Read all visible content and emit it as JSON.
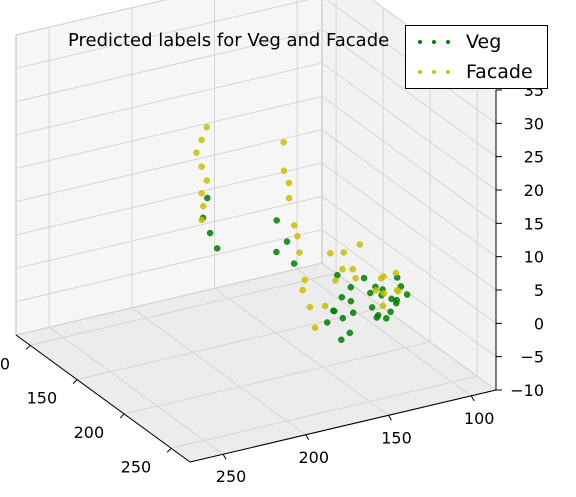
{
  "chart_data": {
    "type": "scatter",
    "projection": "3d",
    "title": "Predicted labels for Veg and Facade",
    "series": [
      {
        "name": "Veg",
        "color": "#008000",
        "points": [
          [
            228,
            210,
            18
          ],
          [
            226,
            214,
            16
          ],
          [
            224,
            218,
            14
          ],
          [
            222,
            204,
            20
          ],
          [
            195,
            230,
            13
          ],
          [
            192,
            236,
            15
          ],
          [
            190,
            240,
            12
          ],
          [
            196,
            232,
            18
          ],
          [
            170,
            240,
            2
          ],
          [
            168,
            244,
            4
          ],
          [
            166,
            248,
            0
          ],
          [
            164,
            236,
            3
          ],
          [
            160,
            238,
            5
          ],
          [
            158,
            244,
            7
          ],
          [
            162,
            250,
            1
          ],
          [
            165,
            242,
            9
          ],
          [
            156,
            232,
            1
          ],
          [
            152,
            236,
            2
          ],
          [
            150,
            230,
            3
          ],
          [
            140,
            235,
            2
          ],
          [
            138,
            238,
            1
          ],
          [
            136,
            226,
            3
          ],
          [
            142,
            230,
            6
          ],
          [
            140,
            240,
            1
          ],
          [
            132,
            236,
            0
          ],
          [
            134,
            228,
            4
          ],
          [
            128,
            224,
            2
          ],
          [
            126,
            230,
            0
          ],
          [
            130,
            238,
            3
          ],
          [
            124,
            218,
            2
          ],
          [
            120,
            226,
            1
          ],
          [
            122,
            234,
            4
          ],
          [
            118,
            222,
            0
          ],
          [
            116,
            230,
            2
          ],
          [
            114,
            216,
            3
          ]
        ]
      },
      {
        "name": "Facade",
        "color": "#c9c000",
        "points": [
          [
            230,
            212,
            30
          ],
          [
            230,
            212,
            26
          ],
          [
            230,
            212,
            22
          ],
          [
            230,
            212,
            18
          ],
          [
            228,
            214,
            32
          ],
          [
            228,
            214,
            24
          ],
          [
            232,
            210,
            28
          ],
          [
            229,
            212,
            20
          ],
          [
            195,
            238,
            26
          ],
          [
            193,
            240,
            22
          ],
          [
            191,
            242,
            18
          ],
          [
            189,
            244,
            14
          ],
          [
            187,
            246,
            10
          ],
          [
            185,
            248,
            6
          ],
          [
            183,
            250,
            3
          ],
          [
            194,
            236,
            30
          ],
          [
            192,
            238,
            24
          ],
          [
            188,
            240,
            16
          ],
          [
            186,
            242,
            8
          ],
          [
            165,
            240,
            8
          ],
          [
            167,
            238,
            12
          ],
          [
            169,
            236,
            4
          ],
          [
            163,
            244,
            10
          ],
          [
            150,
            232,
            8
          ],
          [
            148,
            236,
            12
          ],
          [
            146,
            228,
            6
          ],
          [
            152,
            226,
            10
          ],
          [
            136,
            232,
            4
          ],
          [
            134,
            236,
            2
          ],
          [
            130,
            230,
            3
          ],
          [
            128,
            226,
            5
          ],
          [
            126,
            220,
            4
          ],
          [
            122,
            230,
            3
          ],
          [
            118,
            224,
            2
          ],
          [
            116,
            218,
            4
          ]
        ]
      }
    ],
    "axes": {
      "x": {
        "range": [
          85,
          270
        ],
        "ticks": [
          100,
          150,
          200,
          250
        ]
      },
      "y": {
        "range": [
          85,
          270
        ],
        "ticks": [
          100,
          150,
          200,
          250
        ]
      },
      "z": {
        "range": [
          -10,
          35
        ],
        "ticks": [
          -10,
          -5,
          0,
          5,
          10,
          15,
          20,
          25,
          30,
          35
        ]
      }
    },
    "legend_position": "top-right",
    "grid": true
  }
}
